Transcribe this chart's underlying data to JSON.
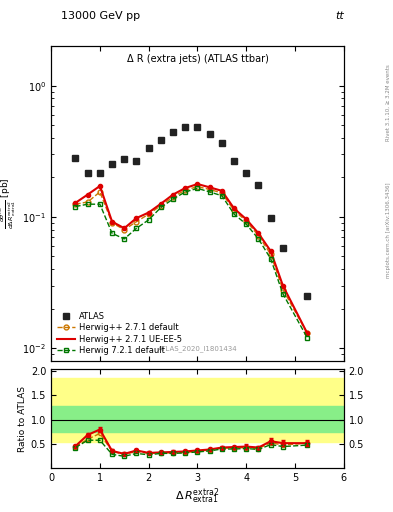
{
  "title_main": "13000 GeV pp",
  "title_right": "tt",
  "inner_title": "Δ R (extra jets) (ATLAS ttbar)",
  "watermark": "ATLAS_2020_I1801434",
  "ylabel_ratio": "Ratio to ATLAS",
  "xlabel": "Δ R_{extra1}^{extra2}",
  "right_label": "Rivet 3.1.10, ≥ 3.2M events",
  "right_label2": "mcplots.cern.ch [arXiv:1306.3436]",
  "atlas_x": [
    0.5,
    0.75,
    1.0,
    1.25,
    1.5,
    1.75,
    2.0,
    2.25,
    2.5,
    2.75,
    3.0,
    3.25,
    3.5,
    3.75,
    4.0,
    4.25,
    4.5,
    4.75,
    5.25
  ],
  "atlas_y": [
    0.28,
    0.215,
    0.215,
    0.255,
    0.275,
    0.265,
    0.335,
    0.385,
    0.44,
    0.48,
    0.485,
    0.43,
    0.365,
    0.265,
    0.215,
    0.175,
    0.098,
    0.058,
    0.025
  ],
  "hw271_x": [
    0.5,
    0.75,
    1.0,
    1.25,
    1.5,
    1.75,
    2.0,
    2.25,
    2.5,
    2.75,
    3.0,
    3.25,
    3.5,
    3.75,
    4.0,
    4.25,
    4.5,
    4.75,
    5.25
  ],
  "hw271_y": [
    0.125,
    0.13,
    0.155,
    0.09,
    0.08,
    0.092,
    0.105,
    0.122,
    0.142,
    0.16,
    0.17,
    0.162,
    0.152,
    0.112,
    0.093,
    0.072,
    0.052,
    0.028,
    0.013
  ],
  "hw271ue_x": [
    0.5,
    0.75,
    1.0,
    1.25,
    1.5,
    1.75,
    2.0,
    2.25,
    2.5,
    2.75,
    3.0,
    3.25,
    3.5,
    3.75,
    4.0,
    4.25,
    4.5,
    4.75,
    5.25
  ],
  "hw271ue_y": [
    0.128,
    0.148,
    0.172,
    0.092,
    0.082,
    0.098,
    0.108,
    0.126,
    0.148,
    0.166,
    0.178,
    0.168,
    0.158,
    0.116,
    0.096,
    0.075,
    0.055,
    0.03,
    0.013
  ],
  "hw721_x": [
    0.5,
    0.75,
    1.0,
    1.25,
    1.5,
    1.75,
    2.0,
    2.25,
    2.5,
    2.75,
    3.0,
    3.25,
    3.5,
    3.75,
    4.0,
    4.25,
    4.5,
    4.75,
    5.25
  ],
  "hw721_y": [
    0.12,
    0.125,
    0.125,
    0.075,
    0.068,
    0.082,
    0.095,
    0.118,
    0.137,
    0.155,
    0.165,
    0.155,
    0.145,
    0.105,
    0.088,
    0.068,
    0.048,
    0.026,
    0.012
  ],
  "ratio_hw271_y": [
    0.45,
    0.6,
    0.72,
    0.35,
    0.29,
    0.35,
    0.31,
    0.32,
    0.32,
    0.33,
    0.35,
    0.38,
    0.42,
    0.42,
    0.43,
    0.41,
    0.53,
    0.48,
    0.52
  ],
  "ratio_hw271ue_y": [
    0.46,
    0.69,
    0.8,
    0.36,
    0.3,
    0.37,
    0.32,
    0.33,
    0.34,
    0.35,
    0.37,
    0.39,
    0.43,
    0.44,
    0.45,
    0.43,
    0.56,
    0.52,
    0.52
  ],
  "ratio_hw721_y": [
    0.43,
    0.58,
    0.58,
    0.29,
    0.25,
    0.31,
    0.28,
    0.31,
    0.31,
    0.32,
    0.34,
    0.36,
    0.4,
    0.4,
    0.41,
    0.39,
    0.49,
    0.45,
    0.48
  ],
  "ratio_yerr_hw271ue": [
    0.03,
    0.04,
    0.05,
    0.03,
    0.03,
    0.03,
    0.03,
    0.03,
    0.03,
    0.03,
    0.03,
    0.03,
    0.03,
    0.03,
    0.05,
    0.04,
    0.06,
    0.06,
    0.06
  ],
  "color_atlas": "#222222",
  "color_hw271": "#cc7700",
  "color_hw271ue": "#dd0000",
  "color_hw721": "#007700",
  "color_yellow": "#ffff88",
  "color_green": "#88ee88",
  "xlim": [
    0,
    6
  ],
  "ylim_main": [
    0.008,
    2.0
  ],
  "ylim_ratio": [
    0.0,
    2.05
  ],
  "ratio_yticks": [
    0.5,
    1.0,
    1.5,
    2.0
  ]
}
